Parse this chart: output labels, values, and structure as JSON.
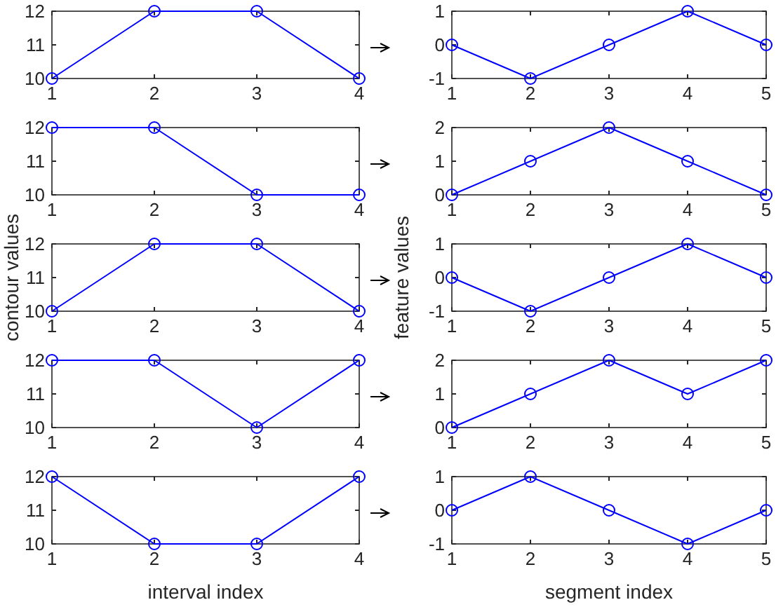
{
  "chart_data": [
    {
      "type": "line",
      "x": [
        1,
        2,
        3,
        4
      ],
      "values": [
        10,
        12,
        12,
        10
      ],
      "color": "#0000ff",
      "xlim": [
        1,
        4
      ],
      "xticks": [
        1,
        2,
        3,
        4
      ],
      "ylim": [
        10,
        12
      ],
      "yticks": [
        10,
        11,
        12
      ],
      "marker": "circle",
      "grid": false
    },
    {
      "type": "line",
      "x": [
        1,
        2,
        3,
        4,
        5
      ],
      "values": [
        0,
        -1,
        0,
        1,
        0
      ],
      "color": "#0000ff",
      "xlim": [
        1,
        5
      ],
      "xticks": [
        1,
        2,
        3,
        4,
        5
      ],
      "ylim": [
        -1,
        1
      ],
      "yticks": [
        -1,
        0,
        1
      ],
      "marker": "circle",
      "grid": false
    },
    {
      "type": "line",
      "x": [
        1,
        2,
        3,
        4
      ],
      "values": [
        12,
        12,
        10,
        10
      ],
      "color": "#0000ff",
      "xlim": [
        1,
        4
      ],
      "xticks": [
        1,
        2,
        3,
        4
      ],
      "ylim": [
        10,
        12
      ],
      "yticks": [
        10,
        11,
        12
      ],
      "marker": "circle",
      "grid": false
    },
    {
      "type": "line",
      "x": [
        1,
        2,
        3,
        4,
        5
      ],
      "values": [
        0,
        1,
        2,
        1,
        0
      ],
      "color": "#0000ff",
      "xlim": [
        1,
        5
      ],
      "xticks": [
        1,
        2,
        3,
        4,
        5
      ],
      "ylim": [
        0,
        2
      ],
      "yticks": [
        0,
        1,
        2
      ],
      "marker": "circle",
      "grid": false
    },
    {
      "type": "line",
      "ylabel": "contour values",
      "x": [
        1,
        2,
        3,
        4
      ],
      "values": [
        10,
        12,
        12,
        10
      ],
      "color": "#0000ff",
      "xlim": [
        1,
        4
      ],
      "xticks": [
        1,
        2,
        3,
        4
      ],
      "ylim": [
        10,
        12
      ],
      "yticks": [
        10,
        11,
        12
      ],
      "marker": "circle",
      "grid": false
    },
    {
      "type": "line",
      "ylabel": "feature values",
      "x": [
        1,
        2,
        3,
        4,
        5
      ],
      "values": [
        0,
        -1,
        0,
        1,
        0
      ],
      "color": "#0000ff",
      "xlim": [
        1,
        5
      ],
      "xticks": [
        1,
        2,
        3,
        4,
        5
      ],
      "ylim": [
        -1,
        1
      ],
      "yticks": [
        -1,
        0,
        1
      ],
      "marker": "circle",
      "grid": false
    },
    {
      "type": "line",
      "x": [
        1,
        2,
        3,
        4
      ],
      "values": [
        12,
        12,
        10,
        12
      ],
      "color": "#0000ff",
      "xlim": [
        1,
        4
      ],
      "xticks": [
        1,
        2,
        3,
        4
      ],
      "ylim": [
        10,
        12
      ],
      "yticks": [
        10,
        11,
        12
      ],
      "marker": "circle",
      "grid": false
    },
    {
      "type": "line",
      "x": [
        1,
        2,
        3,
        4,
        5
      ],
      "values": [
        0,
        1,
        2,
        1,
        2
      ],
      "color": "#0000ff",
      "xlim": [
        1,
        5
      ],
      "xticks": [
        1,
        2,
        3,
        4,
        5
      ],
      "ylim": [
        0,
        2
      ],
      "yticks": [
        0,
        1,
        2
      ],
      "marker": "circle",
      "grid": false
    },
    {
      "type": "line",
      "xlabel": "interval index",
      "x": [
        1,
        2,
        3,
        4
      ],
      "values": [
        12,
        10,
        10,
        12
      ],
      "color": "#0000ff",
      "xlim": [
        1,
        4
      ],
      "xticks": [
        1,
        2,
        3,
        4
      ],
      "ylim": [
        10,
        12
      ],
      "yticks": [
        10,
        11,
        12
      ],
      "marker": "circle",
      "grid": false
    },
    {
      "type": "line",
      "xlabel": "segment index",
      "x": [
        1,
        2,
        3,
        4,
        5
      ],
      "values": [
        0,
        1,
        0,
        -1,
        0
      ],
      "color": "#0000ff",
      "xlim": [
        1,
        5
      ],
      "xticks": [
        1,
        2,
        3,
        4,
        5
      ],
      "ylim": [
        -1,
        1
      ],
      "yticks": [
        -1,
        0,
        1
      ],
      "marker": "circle",
      "grid": false
    }
  ]
}
